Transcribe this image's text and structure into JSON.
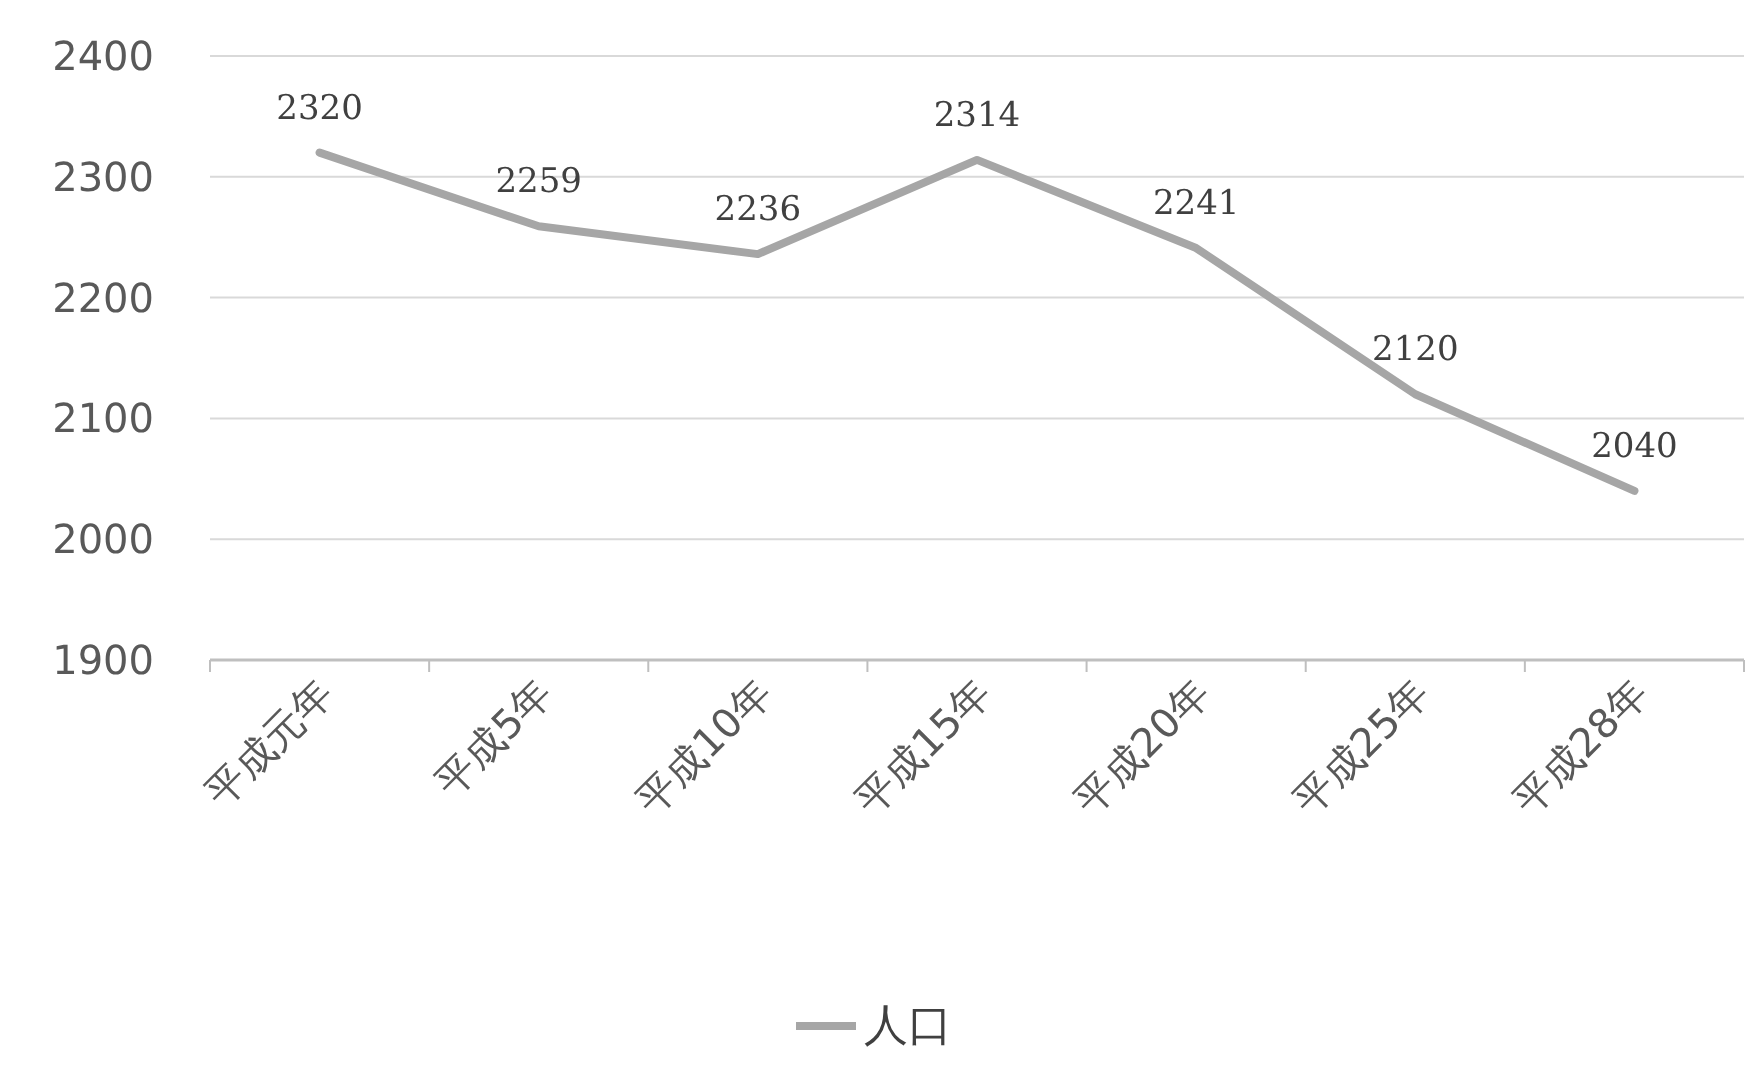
{
  "chart_data": {
    "type": "line",
    "categories": [
      "平成元年",
      "平成5年",
      "平成10年",
      "平成15年",
      "平成20年",
      "平成25年",
      "平成28年"
    ],
    "series": [
      {
        "name": "人口",
        "color": "#a6a6a6",
        "values": [
          2320,
          2259,
          2236,
          2314,
          2241,
          2120,
          2040
        ]
      }
    ],
    "ylim": [
      1900,
      2400
    ],
    "yticks": [
      1900,
      2000,
      2100,
      2200,
      2300,
      2400
    ],
    "grid": "y",
    "legend": "bottom",
    "data_labels": true
  }
}
